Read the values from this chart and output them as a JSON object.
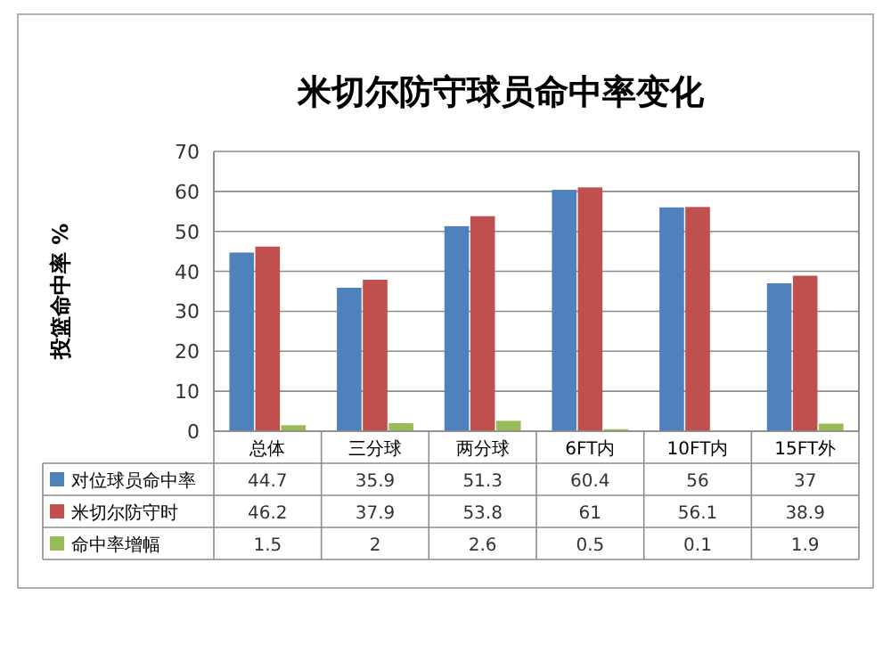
{
  "chart_data": {
    "type": "bar",
    "title": "米切尔防守球员命中率变化",
    "ylabel": "投篮命中率 %",
    "categories": [
      "总体",
      "三分球",
      "两分球",
      "6FT内",
      "10FT内",
      "15FT外"
    ],
    "series": [
      {
        "name": "对位球员命中率",
        "color": "#4f81bd",
        "values": [
          44.7,
          35.9,
          51.3,
          60.4,
          56,
          37
        ]
      },
      {
        "name": "米切尔防守时",
        "color": "#c0504d",
        "values": [
          46.2,
          37.9,
          53.8,
          61,
          56.1,
          38.9
        ]
      },
      {
        "name": "命中率增幅",
        "color": "#9bbb59",
        "values": [
          1.5,
          2,
          2.6,
          0.5,
          0.1,
          1.9
        ]
      }
    ],
    "ylim": [
      0,
      70
    ],
    "yticks": [
      0,
      10,
      20,
      30,
      40,
      50,
      60,
      70
    ],
    "grid": "y",
    "legend": "bottom",
    "data_labels": true
  }
}
